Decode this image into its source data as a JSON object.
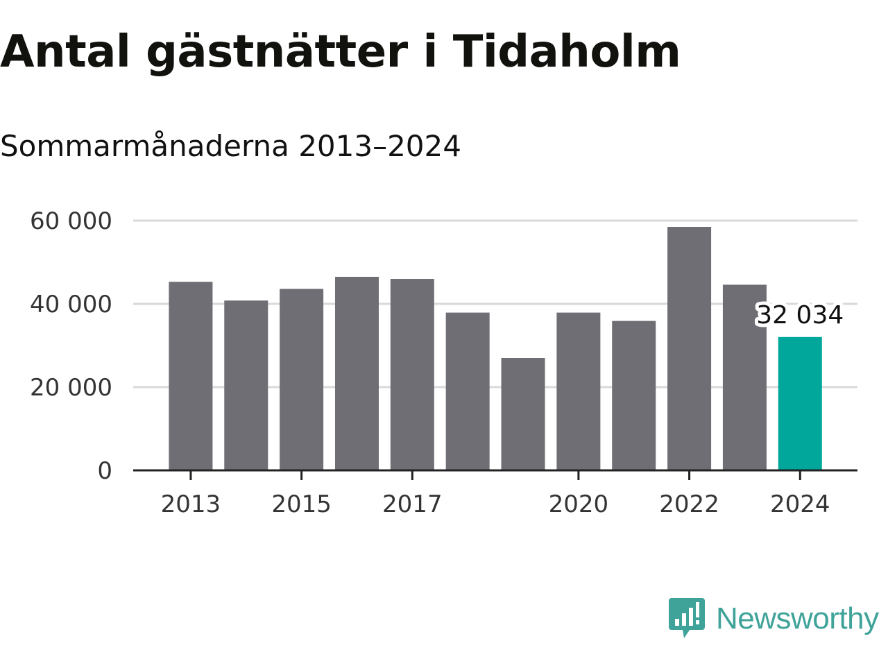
{
  "title": "Antal gästnätter i Tidaholm",
  "subtitle": "Sommarmånaderna 2013–2024",
  "brand": {
    "name": "Newsworthy",
    "icon": "newsworthy-logo-icon",
    "color": "#3fa39a"
  },
  "colors": {
    "bar": "#6f6e74",
    "highlight": "#00a79a",
    "grid": "#d9d9d9",
    "axis": "#222222"
  },
  "chart_data": {
    "type": "bar",
    "title": "Antal gästnätter i Tidaholm",
    "subtitle": "Sommarmånaderna 2013–2024",
    "categories": [
      "2013",
      "2014",
      "2015",
      "2016",
      "2017",
      "2018",
      "2019",
      "2020",
      "2021",
      "2022",
      "2023",
      "2024"
    ],
    "values": [
      45300,
      40800,
      43600,
      46500,
      46000,
      37900,
      27000,
      37900,
      35900,
      58500,
      44600,
      32034
    ],
    "x_tick_labels": [
      "2013",
      "2015",
      "2017",
      "2020",
      "2022",
      "2024"
    ],
    "y_ticks": [
      0,
      20000,
      40000,
      60000
    ],
    "y_tick_labels": [
      "0",
      "20 000",
      "40 000",
      "60 000"
    ],
    "ylim": [
      0,
      60000
    ],
    "highlight": {
      "category": "2024",
      "label": "32 034"
    },
    "grid": "horizontal dashed",
    "legend": "none"
  }
}
